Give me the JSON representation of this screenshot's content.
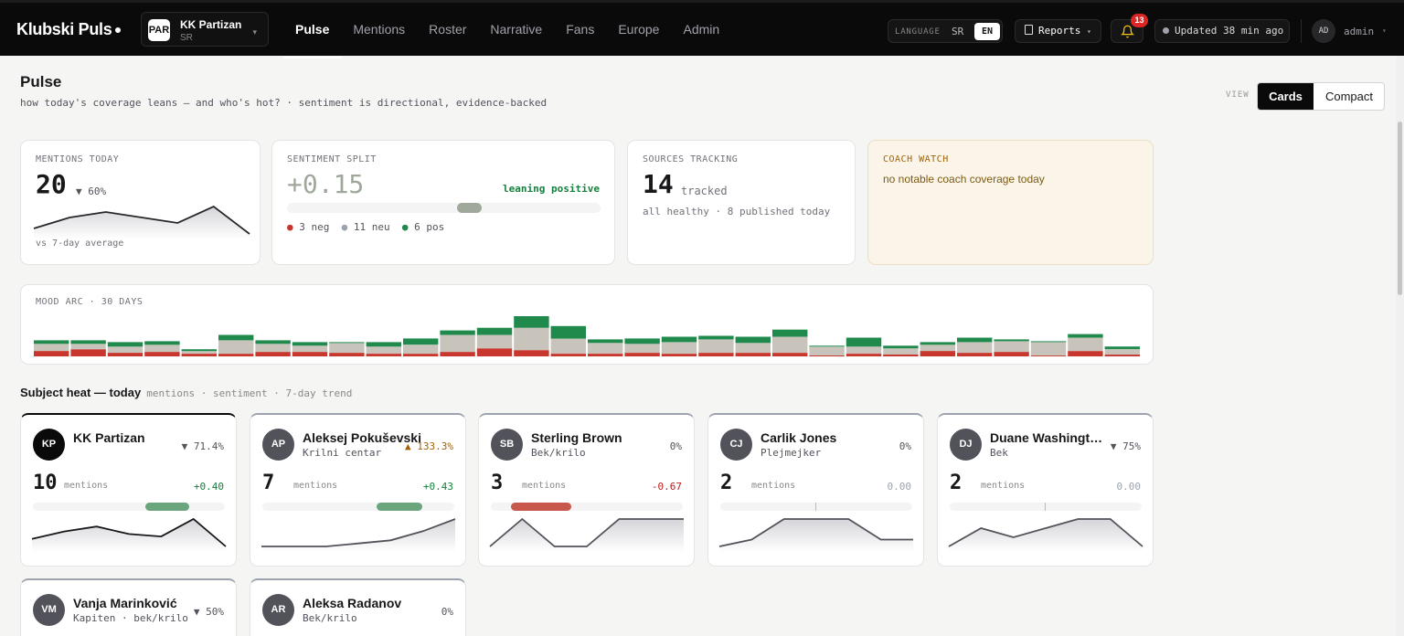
{
  "app": {
    "name": "Klubski Puls"
  },
  "club": {
    "badge": "PAR",
    "name": "KK Partizan",
    "lang": "SR"
  },
  "nav": [
    "Pulse",
    "Mentions",
    "Roster",
    "Narrative",
    "Fans",
    "Europe",
    "Admin"
  ],
  "nav_active": 0,
  "language": {
    "label": "LANGUAGE",
    "options": [
      "SR",
      "EN"
    ],
    "selected": "EN"
  },
  "reports": {
    "label": "Reports"
  },
  "notifications": {
    "count": "13"
  },
  "updated": {
    "text": "Updated 38 min ago"
  },
  "user": {
    "initials": "AD",
    "name": "admin"
  },
  "page": {
    "title": "Pulse",
    "subtitle": "how today's coverage leans — and who's hot? · sentiment is directional, evidence-backed"
  },
  "view": {
    "label": "VIEW",
    "options": [
      "Cards",
      "Compact"
    ],
    "selected": "Cards"
  },
  "kpis": {
    "mentions": {
      "label": "MENTIONS TODAY",
      "value": "20",
      "change": "▼ 60%",
      "note": "vs 7-day average",
      "trend": [
        8,
        10,
        11,
        10,
        9,
        12,
        7
      ]
    },
    "sentiment": {
      "label": "SENTIMENT SPLIT",
      "value": "+0.15",
      "tag": "leaning positive",
      "position": 0.58,
      "neg": "3 neg",
      "neu": "11 neu",
      "pos": "6 pos"
    },
    "sources": {
      "label": "SOURCES TRACKING",
      "value": "14",
      "unit": "tracked",
      "note": "all healthy · 8 published today"
    },
    "coach": {
      "label": "COACH WATCH",
      "text": "no notable coach coverage today"
    }
  },
  "mood": {
    "label": "MOOD ARC · 30 DAYS",
    "days": [
      {
        "neg": 6,
        "neu": 8,
        "pos": 4
      },
      {
        "neg": 8,
        "neu": 6,
        "pos": 4
      },
      {
        "neg": 4,
        "neu": 7,
        "pos": 5
      },
      {
        "neg": 5,
        "neu": 8,
        "pos": 4
      },
      {
        "neg": 3,
        "neu": 3,
        "pos": 2
      },
      {
        "neg": 3,
        "neu": 15,
        "pos": 6
      },
      {
        "neg": 5,
        "neu": 9,
        "pos": 4
      },
      {
        "neg": 5,
        "neu": 7,
        "pos": 4
      },
      {
        "neg": 4,
        "neu": 11,
        "pos": 1
      },
      {
        "neg": 3,
        "neu": 8,
        "pos": 5
      },
      {
        "neg": 3,
        "neu": 10,
        "pos": 7
      },
      {
        "neg": 5,
        "neu": 19,
        "pos": 5
      },
      {
        "neg": 9,
        "neu": 15,
        "pos": 8
      },
      {
        "neg": 7,
        "neu": 25,
        "pos": 13
      },
      {
        "neg": 3,
        "neu": 17,
        "pos": 14
      },
      {
        "neg": 3,
        "neu": 12,
        "pos": 4
      },
      {
        "neg": 4,
        "neu": 10,
        "pos": 6
      },
      {
        "neg": 3,
        "neu": 13,
        "pos": 6
      },
      {
        "neg": 4,
        "neu": 15,
        "pos": 4
      },
      {
        "neg": 4,
        "neu": 11,
        "pos": 7
      },
      {
        "neg": 4,
        "neu": 18,
        "pos": 8
      },
      {
        "neg": 1,
        "neu": 10,
        "pos": 1
      },
      {
        "neg": 3,
        "neu": 8,
        "pos": 10
      },
      {
        "neg": 2,
        "neu": 7,
        "pos": 3
      },
      {
        "neg": 6,
        "neu": 7,
        "pos": 3
      },
      {
        "neg": 4,
        "neu": 12,
        "pos": 5
      },
      {
        "neg": 5,
        "neu": 12,
        "pos": 2
      },
      {
        "neg": 1,
        "neu": 15,
        "pos": 1
      },
      {
        "neg": 6,
        "neu": 15,
        "pos": 4
      },
      {
        "neg": 2,
        "neu": 6,
        "pos": 3
      }
    ]
  },
  "heat": {
    "title": "Subject heat — today",
    "subtitle": "mentions · sentiment · 7-day trend",
    "mentions_label": "mentions",
    "subjects": [
      {
        "initials": "KP",
        "name": "KK Partizan",
        "role": "",
        "change": "▼ 71.4%",
        "dir": "down",
        "count": "10",
        "sentiment": "+0.40",
        "sent_value": 0.4,
        "trend": [
          3,
          6,
          8,
          5,
          4,
          11,
          0
        ]
      },
      {
        "initials": "AP",
        "name": "Aleksej Pokuševski",
        "role": "Krilni centar",
        "change": "▲ 133.3%",
        "dir": "up",
        "count": "7",
        "sentiment": "+0.43",
        "sent_value": 0.43,
        "trend": [
          0,
          0,
          0,
          1,
          2,
          5,
          9
        ]
      },
      {
        "initials": "SB",
        "name": "Sterling Brown",
        "role": "Bek/krilo",
        "change": "0%",
        "dir": "flat",
        "count": "3",
        "sentiment": "-0.67",
        "sent_value": -0.67,
        "trend": [
          0,
          1,
          0,
          0,
          1,
          1,
          1
        ]
      },
      {
        "initials": "CJ",
        "name": "Carlik Jones",
        "role": "Plejmejker",
        "change": "0%",
        "dir": "flat",
        "count": "2",
        "sentiment": "0.00",
        "sent_value": 0,
        "trend": [
          0,
          1,
          4,
          4,
          4,
          1,
          1
        ]
      },
      {
        "initials": "DJ",
        "name": "Duane Washington Jr.",
        "role": "Bek",
        "change": "▼ 75%",
        "dir": "down",
        "count": "2",
        "sentiment": "0.00",
        "sent_value": 0,
        "trend": [
          0,
          2,
          1,
          2,
          3,
          3,
          0
        ]
      },
      {
        "initials": "VM",
        "name": "Vanja Marinković",
        "role": "Kapiten · bek/krilo",
        "change": "▼ 50%",
        "dir": "down",
        "count": "",
        "sentiment": "",
        "sent_value": 0,
        "trend": []
      },
      {
        "initials": "AR",
        "name": "Aleksa Radanov",
        "role": "Bek/krilo",
        "change": "0%",
        "dir": "flat",
        "count": "",
        "sentiment": "",
        "sent_value": 0,
        "trend": []
      }
    ]
  },
  "colors": {
    "positive": "#1f8a4c",
    "neutral": "#c9c4bb",
    "negative": "#c8372d",
    "positive_text": "#15803d",
    "negative_text": "#b91c1c"
  }
}
